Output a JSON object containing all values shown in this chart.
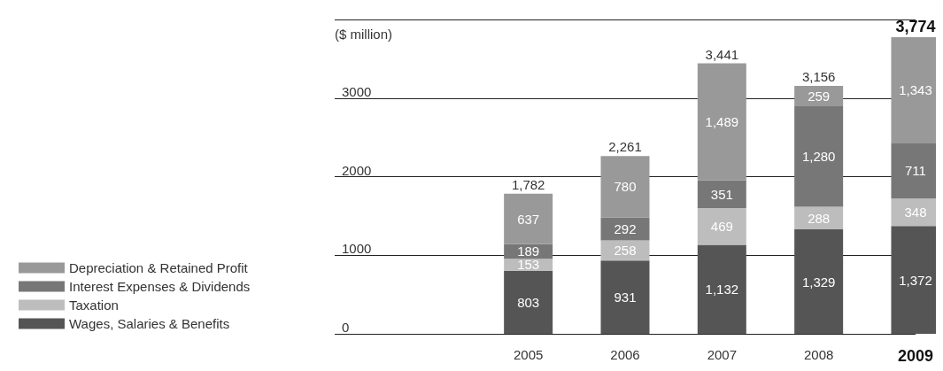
{
  "chart_data": {
    "type": "bar",
    "stacked": true,
    "ylabel": "($ million)",
    "categories": [
      "2005",
      "2006",
      "2007",
      "2008",
      "2009"
    ],
    "series": [
      {
        "name": "Wages, Salaries & Benefits",
        "color": "#555555",
        "values": [
          803,
          931,
          1132,
          1329,
          1372
        ],
        "value_labels": [
          "803",
          "931",
          "1,132",
          "1,329",
          "1,372"
        ]
      },
      {
        "name": "Taxation",
        "color": "#bdbdbd",
        "values": [
          153,
          258,
          469,
          288,
          348
        ],
        "value_labels": [
          "153",
          "258",
          "469",
          "288",
          "348"
        ]
      },
      {
        "name": "Interest Expenses & Dividends",
        "color": "#777777",
        "values": [
          189,
          292,
          351,
          1280,
          711
        ],
        "value_labels": [
          "189",
          "292",
          "351",
          "1,280",
          "711"
        ]
      },
      {
        "name": "Depreciation & Retained Profit",
        "color": "#999999",
        "values": [
          637,
          780,
          1489,
          259,
          1343
        ],
        "value_labels": [
          "637",
          "780",
          "1,489",
          "259",
          "1,343"
        ]
      }
    ],
    "totals": [
      "1,782",
      "2,261",
      "3,441",
      "3,156",
      "3,774"
    ],
    "ylim": [
      0,
      4000
    ],
    "yticks": [
      0,
      1000,
      2000,
      3000,
      {
        "value": 4000,
        "label": null
      }
    ],
    "grid": "y",
    "legend": "left"
  }
}
